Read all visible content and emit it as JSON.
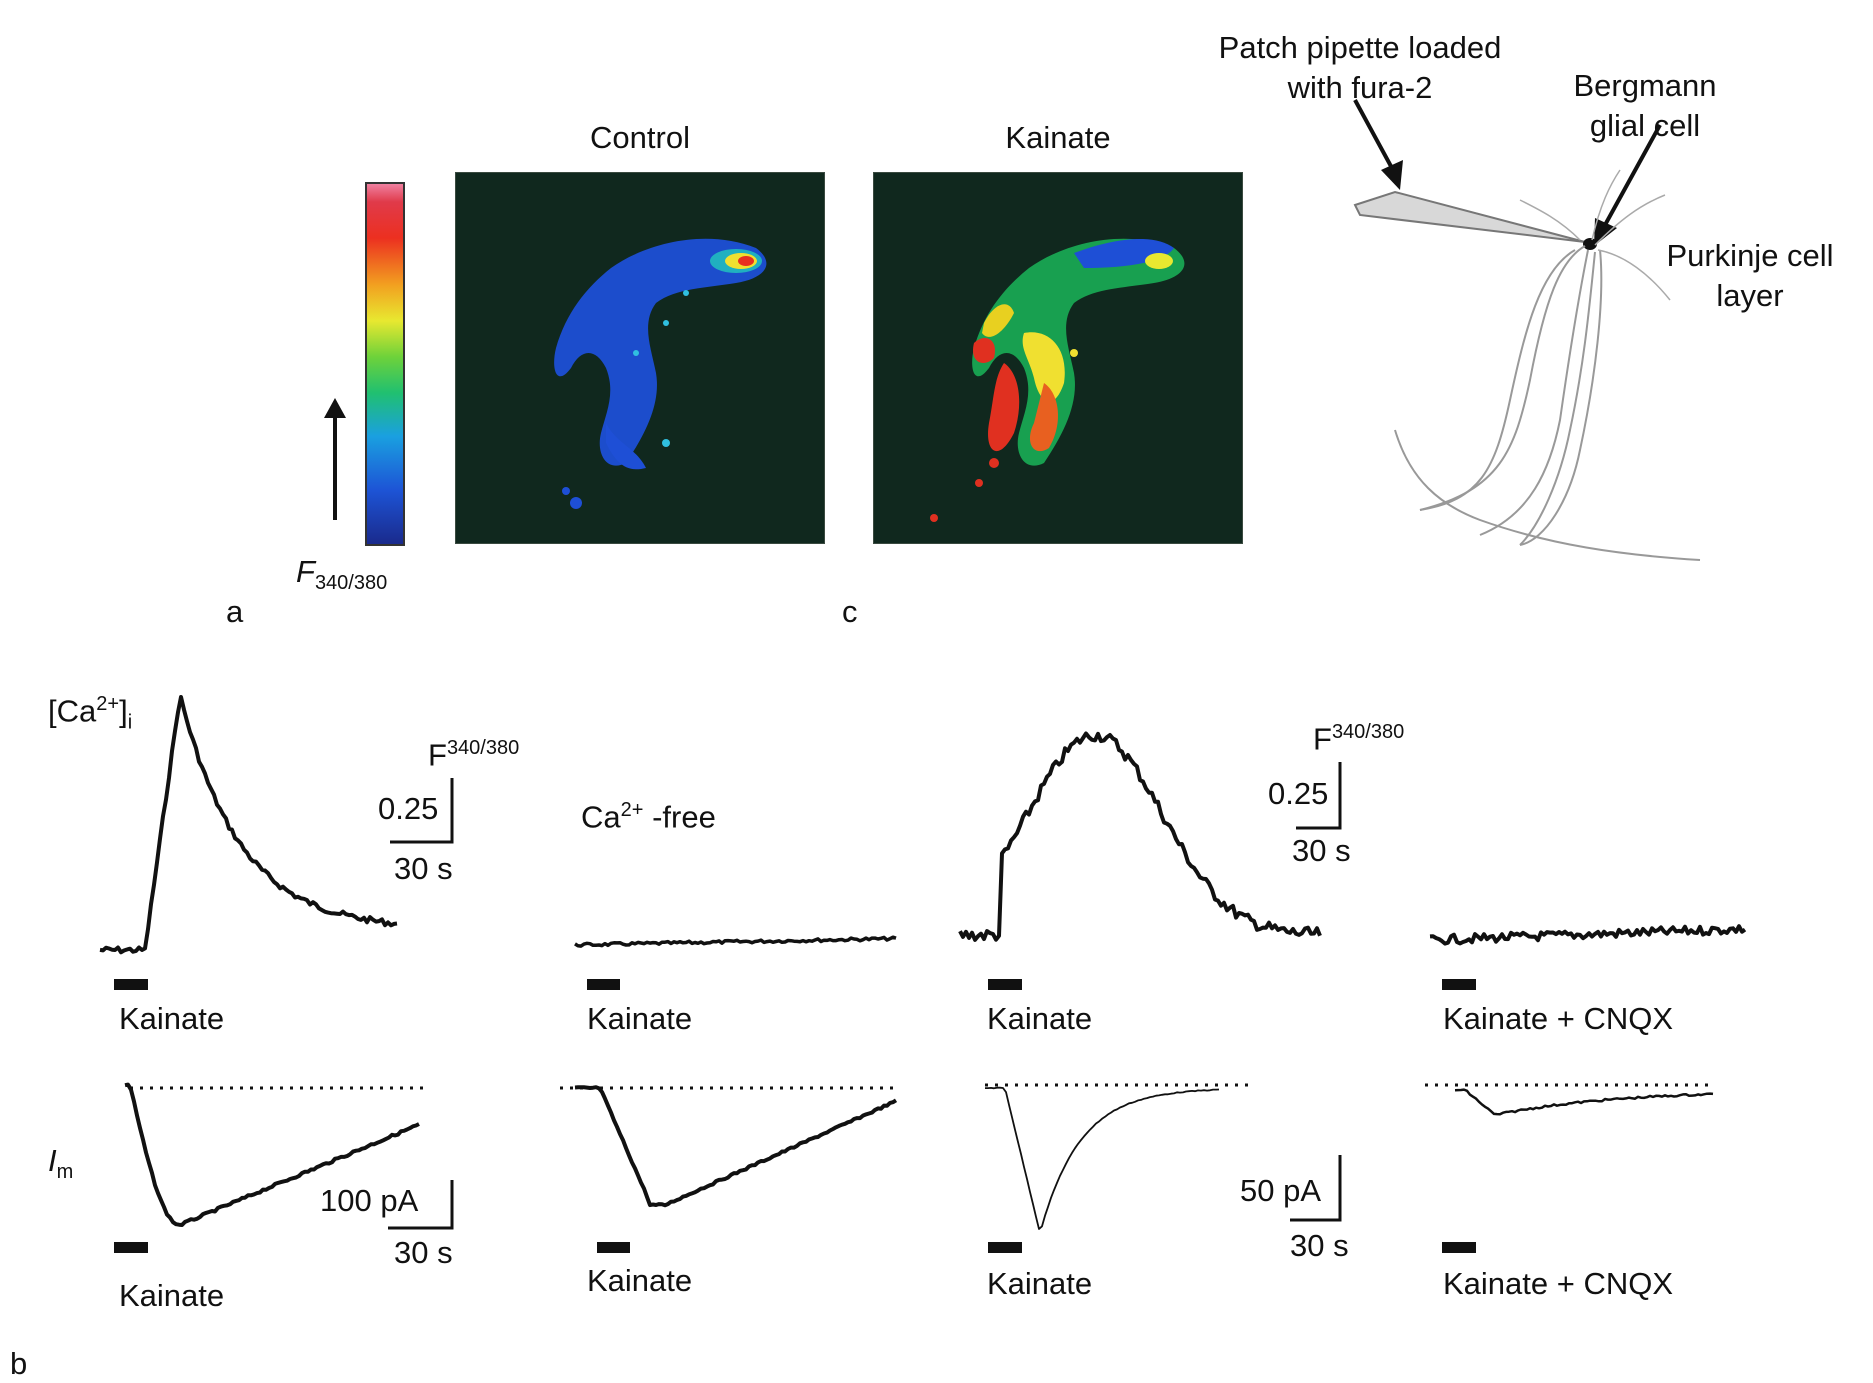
{
  "panel_a": {
    "letter": "a",
    "colorbar_label_main": "F",
    "colorbar_label_sub": "340/380",
    "control_title": "Control"
  },
  "panel_c": {
    "letter": "c",
    "kainate_title": "Kainate",
    "pipette_label_line1": "Patch pipette loaded",
    "pipette_label_line2": "with fura-2",
    "bergmann_label_line1": "Bergmann",
    "bergmann_label_line2": "glial cell",
    "purkinje_label_line1": "Purkinje cell",
    "purkinje_label_line2": "layer"
  },
  "panel_b": {
    "letter": "b",
    "ca_label_main": "[Ca",
    "ca_label_sup": "2+",
    "ca_label_close": "]",
    "ca_label_sub": "i",
    "im_label_main": "I",
    "im_label_sub": "m",
    "ca_free_main": "Ca",
    "ca_free_sup": "2+",
    "ca_free_rest": " -free",
    "scale1_f_main": "F",
    "scale1_f_sup": "340/380",
    "scale1_v": "0.25",
    "scale1_t": "30 s",
    "scale2_f_main": "F",
    "scale2_f_sup": "340/380",
    "scale2_v": "0.25",
    "scale2_t": "30 s",
    "scale3_v": "100 pA",
    "scale3_t": "30 s",
    "scale4_v": "50 pA",
    "scale4_t": "30 s",
    "ca_stim_labels": [
      "Kainate",
      "Kainate",
      "Kainate",
      "Kainate + CNQX"
    ],
    "im_stim_labels": [
      "Kainate",
      "Kainate",
      "Kainate",
      "Kainate + CNQX"
    ]
  }
}
